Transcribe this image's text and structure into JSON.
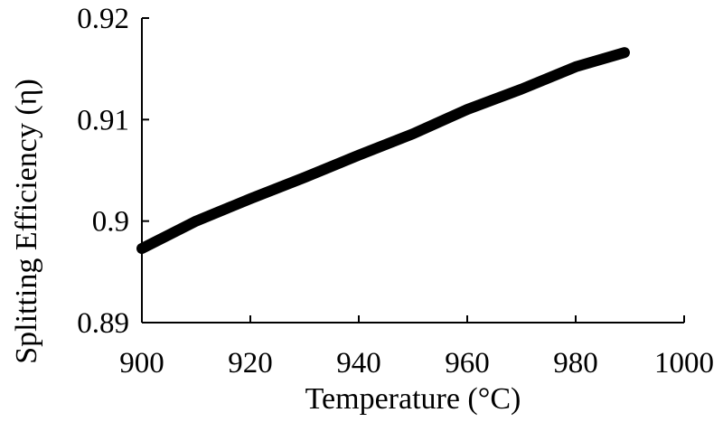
{
  "chart_data": {
    "type": "line",
    "title": "",
    "xlabel": "Temperature (°C)",
    "ylabel": "Splitting Efficiency (η)",
    "xlim": [
      900,
      1000
    ],
    "ylim": [
      0.89,
      0.92
    ],
    "xticks": [
      900,
      920,
      940,
      960,
      980,
      1000
    ],
    "yticks": [
      0.89,
      0.9,
      0.91,
      0.92
    ],
    "xtick_labels": [
      "900",
      "920",
      "940",
      "960",
      "980",
      "1000"
    ],
    "ytick_labels": [
      "0.89",
      "0.9",
      "0.91",
      "0.92"
    ],
    "grid": false,
    "legend": "none",
    "line_color": "#000000",
    "series": [
      {
        "x": [
          900,
          910,
          920,
          930,
          940,
          950,
          960,
          970,
          980,
          989
        ],
        "y": [
          0.8973,
          0.9,
          0.9022,
          0.9043,
          0.9065,
          0.9086,
          0.911,
          0.913,
          0.9152,
          0.9166
        ]
      }
    ]
  }
}
